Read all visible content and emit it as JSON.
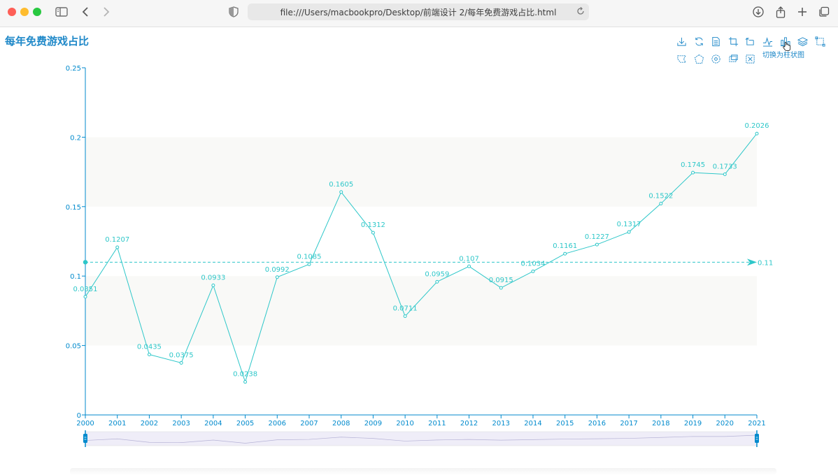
{
  "browser": {
    "url": "file:///Users/macbookpro/Desktop/前端设计 2/每年免费游戏占比.html"
  },
  "toolbox": {
    "tooltip": "切换为柱状图",
    "icons": [
      "download-icon",
      "refresh-icon",
      "data-view-icon",
      "zoom-area-icon",
      "zoom-reset-icon",
      "line-chart-icon",
      "bar-chart-icon",
      "stack-icon",
      "rect-select-icon",
      "lasso-select-icon",
      "polygon-select-icon",
      "keep-select-icon",
      "clear-select-icon",
      "fullscreen-select-icon"
    ]
  },
  "colors": {
    "accent": "#1e88c8",
    "series": "#2ec7c9",
    "axis": "#008acd",
    "band": "#f9f9f7",
    "dataZoomFill": "#efedf8"
  },
  "chart_data": {
    "type": "line",
    "title": "每年免费游戏占比",
    "categories": [
      "2000",
      "2001",
      "2002",
      "2003",
      "2004",
      "2005",
      "2006",
      "2007",
      "2008",
      "2009",
      "2010",
      "2011",
      "2012",
      "2013",
      "2014",
      "2015",
      "2016",
      "2017",
      "2018",
      "2019",
      "2020",
      "2021"
    ],
    "series": [
      {
        "values": [
          0.0851,
          0.1207,
          0.0435,
          0.0375,
          0.0933,
          0.0238,
          0.0992,
          0.1085,
          0.1605,
          0.1312,
          0.0711,
          0.0959,
          0.107,
          0.0915,
          0.1034,
          0.1161,
          0.1227,
          0.1317,
          0.1522,
          0.1745,
          0.1733,
          0.2026
        ]
      }
    ],
    "data_labels": [
      "0.0851",
      "0.1207",
      "0.0435",
      "0.0375",
      "0.0933",
      "0.0238",
      "0.0992",
      "0.1085",
      "0.1605",
      "0.1312",
      "0.0711",
      "0.0959",
      "0.107",
      "0.0915",
      "0.1034",
      "0.1161",
      "0.1227",
      "0.1317",
      "0.1522",
      "0.1745",
      "0.1733",
      "0.2026"
    ],
    "mark_line": {
      "value": 0.11,
      "label": "0.11"
    },
    "ylim": [
      0,
      0.25
    ],
    "yticks": [
      "0",
      "0.05",
      "0.1",
      "0.15",
      "0.2",
      "0.25"
    ],
    "yticks_values": [
      0,
      0.05,
      0.1,
      0.15,
      0.2,
      0.25
    ],
    "grid": false,
    "split_area": true
  }
}
